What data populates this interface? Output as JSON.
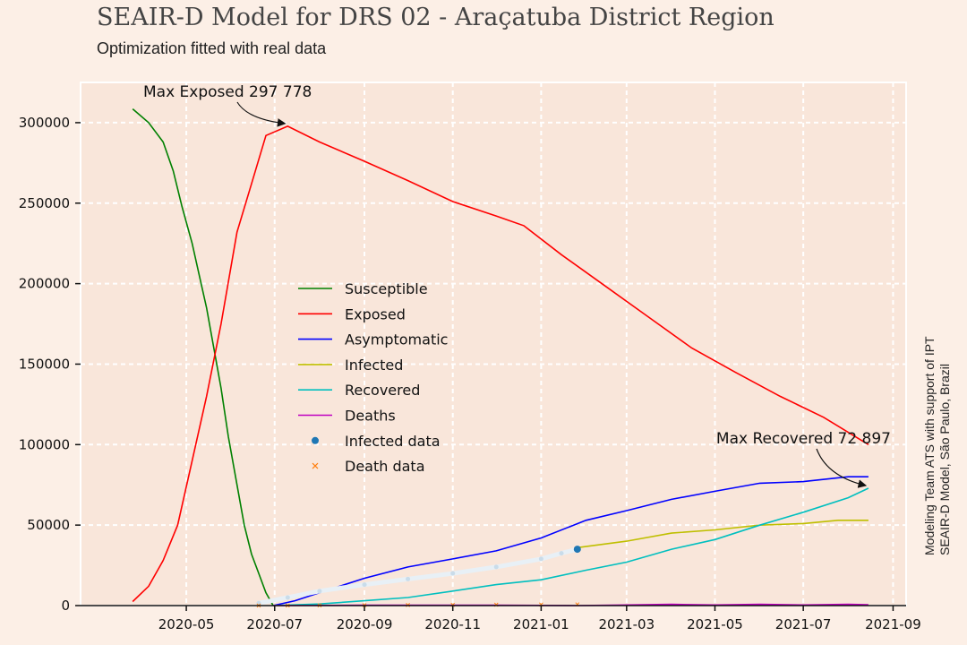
{
  "title": "SEAIR-D Model for DRS 02 - Araçatuba District Region",
  "subtitle": "Optimization fitted with real data",
  "side_credit": {
    "line1": "Modeling Team ATS with support of IPT",
    "line2": "SEAIR-D Model, São Paulo, Brazil"
  },
  "colors": {
    "background": "#fcefe6",
    "plot_background": "#f9e6da",
    "Susceptible": "#008000",
    "Exposed": "#ff0000",
    "Asymptomatic": "#0000ff",
    "Infected": "#bfbf00",
    "Recovered": "#00bfbf",
    "Deaths": "#bf00bf",
    "Infected data": "#1f77b4",
    "Death data": "#ff7f0e"
  },
  "chart_data": {
    "type": "line",
    "title": "SEAIR-D Model for DRS 02 - Araçatuba District Region",
    "subtitle": "Optimization fitted with real data",
    "xlabel": "",
    "ylabel": "",
    "x_axis": "date",
    "xlim": [
      "2020-02-18",
      "2021-09-10"
    ],
    "ylim": [
      0,
      325000
    ],
    "x_ticks": [
      "2020-05",
      "2020-07",
      "2020-09",
      "2020-11",
      "2021-01",
      "2021-03",
      "2021-05",
      "2021-07",
      "2021-09"
    ],
    "y_ticks": [
      "0",
      "50000",
      "100000",
      "150000",
      "200000",
      "250000",
      "300000"
    ],
    "grid": true,
    "legend_position": "center-left",
    "series": [
      {
        "name": "Susceptible",
        "kind": "line",
        "points": [
          [
            "2020-03-25",
            308500
          ],
          [
            "2020-04-05",
            300000
          ],
          [
            "2020-04-15",
            288000
          ],
          [
            "2020-04-22",
            270000
          ],
          [
            "2020-04-28",
            248000
          ],
          [
            "2020-05-05",
            225000
          ],
          [
            "2020-05-10",
            205000
          ],
          [
            "2020-05-15",
            185000
          ],
          [
            "2020-05-20",
            160000
          ],
          [
            "2020-05-25",
            135000
          ],
          [
            "2020-05-30",
            105000
          ],
          [
            "2020-06-05",
            75000
          ],
          [
            "2020-06-10",
            50000
          ],
          [
            "2020-06-15",
            32000
          ],
          [
            "2020-06-20",
            20000
          ],
          [
            "2020-06-25",
            8000
          ],
          [
            "2020-06-30",
            0
          ]
        ]
      },
      {
        "name": "Exposed",
        "kind": "line",
        "points": [
          [
            "2020-03-25",
            2500
          ],
          [
            "2020-04-05",
            12000
          ],
          [
            "2020-04-15",
            28000
          ],
          [
            "2020-04-25",
            50000
          ],
          [
            "2020-05-05",
            90000
          ],
          [
            "2020-05-15",
            130000
          ],
          [
            "2020-05-25",
            175000
          ],
          [
            "2020-06-05",
            232000
          ],
          [
            "2020-06-15",
            262000
          ],
          [
            "2020-06-25",
            292000
          ],
          [
            "2020-07-10",
            297778
          ],
          [
            "2020-08-01",
            288000
          ],
          [
            "2020-09-01",
            276000
          ],
          [
            "2020-10-01",
            264000
          ],
          [
            "2020-11-01",
            251000
          ],
          [
            "2020-12-01",
            242000
          ],
          [
            "2020-12-20",
            236000
          ],
          [
            "2021-01-15",
            218000
          ],
          [
            "2021-02-15",
            198000
          ],
          [
            "2021-03-15",
            180000
          ],
          [
            "2021-04-15",
            160000
          ],
          [
            "2021-05-15",
            145000
          ],
          [
            "2021-06-15",
            130000
          ],
          [
            "2021-07-15",
            117000
          ],
          [
            "2021-08-15",
            100000
          ]
        ]
      },
      {
        "name": "Asymptomatic",
        "kind": "line",
        "points": [
          [
            "2020-06-30",
            0
          ],
          [
            "2020-07-15",
            3000
          ],
          [
            "2020-08-01",
            8000
          ],
          [
            "2020-09-01",
            17000
          ],
          [
            "2020-10-01",
            24000
          ],
          [
            "2020-11-01",
            29000
          ],
          [
            "2020-12-01",
            34000
          ],
          [
            "2021-01-01",
            42000
          ],
          [
            "2021-02-01",
            53000
          ],
          [
            "2021-03-01",
            59000
          ],
          [
            "2021-04-01",
            66000
          ],
          [
            "2021-05-01",
            71000
          ],
          [
            "2021-06-01",
            76000
          ],
          [
            "2021-07-01",
            77000
          ],
          [
            "2021-08-01",
            80000
          ],
          [
            "2021-08-15",
            80000
          ]
        ]
      },
      {
        "name": "Infected",
        "kind": "line",
        "points": [
          [
            "2021-01-26",
            36000
          ],
          [
            "2021-03-01",
            40000
          ],
          [
            "2021-04-01",
            45000
          ],
          [
            "2021-05-01",
            47000
          ],
          [
            "2021-06-01",
            50000
          ],
          [
            "2021-07-01",
            51000
          ],
          [
            "2021-07-25",
            53000
          ],
          [
            "2021-08-15",
            53000
          ]
        ]
      },
      {
        "name": "Recovered",
        "kind": "line",
        "points": [
          [
            "2020-06-30",
            0
          ],
          [
            "2020-08-01",
            1000
          ],
          [
            "2020-09-01",
            3000
          ],
          [
            "2020-10-01",
            5000
          ],
          [
            "2020-11-01",
            9000
          ],
          [
            "2020-12-01",
            13000
          ],
          [
            "2021-01-01",
            16000
          ],
          [
            "2021-02-01",
            22000
          ],
          [
            "2021-03-01",
            27000
          ],
          [
            "2021-04-01",
            35000
          ],
          [
            "2021-05-01",
            41000
          ],
          [
            "2021-06-01",
            50000
          ],
          [
            "2021-07-01",
            58000
          ],
          [
            "2021-08-01",
            67000
          ],
          [
            "2021-08-15",
            72897
          ]
        ]
      },
      {
        "name": "Deaths",
        "kind": "line",
        "points": [
          [
            "2020-06-30",
            0
          ],
          [
            "2020-09-01",
            200
          ],
          [
            "2020-12-01",
            300
          ],
          [
            "2021-01-26",
            0
          ],
          [
            "2021-03-01",
            400
          ],
          [
            "2021-04-01",
            800
          ],
          [
            "2021-05-01",
            400
          ],
          [
            "2021-06-01",
            800
          ],
          [
            "2021-07-01",
            400
          ],
          [
            "2021-08-01",
            800
          ],
          [
            "2021-08-15",
            500
          ]
        ]
      },
      {
        "name": "Infected data",
        "kind": "scatter",
        "points": [
          [
            "2020-06-20",
            1500
          ],
          [
            "2020-07-10",
            5000
          ],
          [
            "2020-08-01",
            9000
          ],
          [
            "2020-09-01",
            13000
          ],
          [
            "2020-10-01",
            16500
          ],
          [
            "2020-11-01",
            20000
          ],
          [
            "2020-12-01",
            24000
          ],
          [
            "2021-01-01",
            29000
          ],
          [
            "2021-01-15",
            32500
          ],
          [
            "2021-01-26",
            35000
          ]
        ]
      },
      {
        "name": "Death data",
        "kind": "scatter",
        "points": [
          [
            "2020-06-20",
            30
          ],
          [
            "2020-07-10",
            80
          ],
          [
            "2020-08-01",
            150
          ],
          [
            "2020-09-01",
            250
          ],
          [
            "2020-10-01",
            350
          ],
          [
            "2020-11-01",
            450
          ],
          [
            "2020-12-01",
            550
          ],
          [
            "2021-01-01",
            650
          ],
          [
            "2021-01-26",
            720
          ]
        ]
      }
    ],
    "annotations": [
      {
        "label": "Max Exposed 297 778",
        "series": "Exposed",
        "x": "2020-07-10",
        "y": 297778
      },
      {
        "label": "Max Recovered 72 897",
        "series": "Recovered",
        "x": "2021-08-15",
        "y": 72897
      }
    ]
  }
}
